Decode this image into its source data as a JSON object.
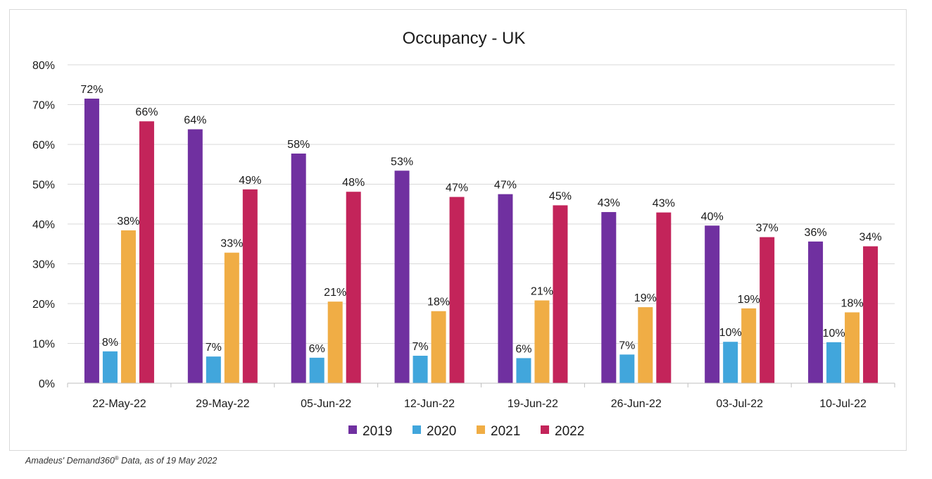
{
  "chart_data": {
    "type": "bar",
    "title": "Occupancy - UK",
    "xlabel": "",
    "ylabel": "",
    "ylim": [
      0,
      80
    ],
    "yticks": [
      "0%",
      "10%",
      "20%",
      "30%",
      "40%",
      "50%",
      "60%",
      "70%",
      "80%"
    ],
    "grid": true,
    "legend_position": "bottom",
    "categories": [
      "22-May-22",
      "29-May-22",
      "05-Jun-22",
      "12-Jun-22",
      "19-Jun-22",
      "26-Jun-22",
      "03-Jul-22",
      "10-Jul-22"
    ],
    "series": [
      {
        "name": "2019",
        "color": "#7030a0",
        "values": [
          71.5,
          63.8,
          57.7,
          53.4,
          47.5,
          43.0,
          39.6,
          35.6
        ],
        "labels": [
          "72%",
          "64%",
          "58%",
          "53%",
          "47%",
          "43%",
          "40%",
          "36%"
        ]
      },
      {
        "name": "2020",
        "color": "#41a6dc",
        "values": [
          8.0,
          6.7,
          6.4,
          6.9,
          6.3,
          7.2,
          10.4,
          10.3
        ],
        "labels": [
          "8%",
          "7%",
          "6%",
          "7%",
          "6%",
          "7%",
          "10%",
          "10%"
        ]
      },
      {
        "name": "2021",
        "color": "#f0ad45",
        "values": [
          38.4,
          32.8,
          20.5,
          18.1,
          20.8,
          19.1,
          18.8,
          17.8
        ],
        "labels": [
          "38%",
          "33%",
          "21%",
          "18%",
          "21%",
          "19%",
          "19%",
          "18%"
        ]
      },
      {
        "name": "2022",
        "color": "#c3245a",
        "values": [
          65.8,
          48.7,
          48.1,
          46.8,
          44.7,
          42.9,
          36.7,
          34.4
        ],
        "labels": [
          "66%",
          "49%",
          "48%",
          "47%",
          "45%",
          "43%",
          "37%",
          "34%"
        ]
      }
    ]
  },
  "source": {
    "prefix": "Amadeus' Demand360",
    "mark": "®",
    "suffix": " Data, as of 19 May 2022"
  }
}
